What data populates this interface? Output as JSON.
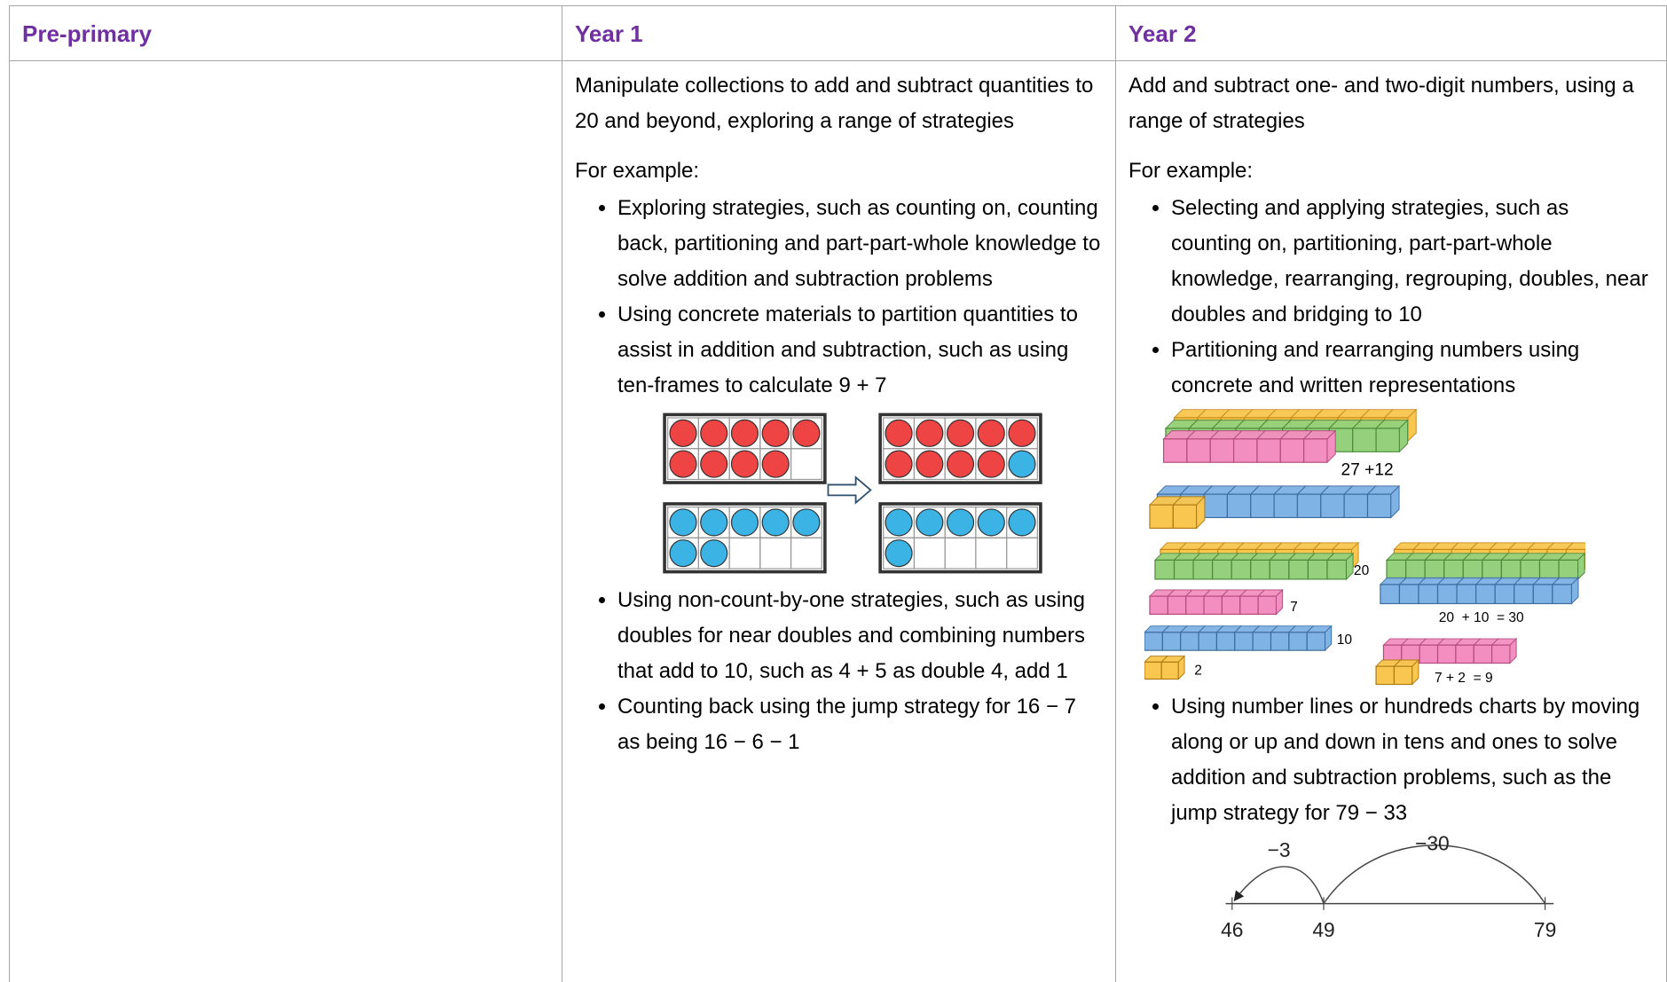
{
  "table": {
    "headers": [
      "Pre-primary",
      "Year 1",
      "Year 2"
    ],
    "year_1": {
      "intro": "Manipulate collections to add and subtract quantities to 20 and beyond, exploring a range of strategies",
      "for_example": "For example:",
      "bullets": [
        "Exploring strategies, such as counting on, counting back, partitioning and part-part-whole knowledge to solve addition and subtraction problems",
        "Using concrete materials to partition quantities to assist in addition and subtraction, such as using ten-frames to calculate 9 + 7",
        "Using non-count-by-one strategies, such as using doubles for near doubles and combining numbers that add to 10, such as 4 + 5 as double 4, add 1",
        "Counting back using the jump strategy for 16 − 7 as being 16 − 6 − 1"
      ]
    },
    "year_2": {
      "intro": "Add and subtract one- and two-digit numbers, using a range of strategies",
      "for_example": "For example:",
      "bullets": [
        "Selecting and applying strategies, such as counting on, partitioning, part-part-whole knowledge, rearranging, regrouping, doubles, near doubles and bridging to 10",
        "Partitioning and rearranging numbers using concrete and written representations",
        "Using number lines or hundreds charts by moving along or up and down in tens and ones to solve addition and subtraction problems, such as the jump strategy for 79 − 33"
      ],
      "base_ten_labels": [
        "27 +12",
        "20",
        "7",
        "10",
        "2",
        "20  + 10  = 30",
        "7 + 2  = 9"
      ],
      "number_line": {
        "jumps": [
          "−3",
          "−30"
        ],
        "points": [
          "46",
          "49",
          "79"
        ]
      }
    }
  }
}
